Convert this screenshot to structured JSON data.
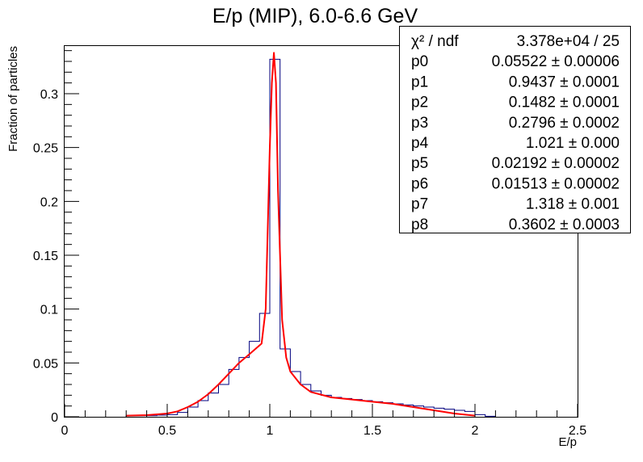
{
  "chart_data": {
    "type": "histogram",
    "title": "E/p (MIP), 6.0-6.6 GeV",
    "xlabel": "E/p",
    "ylabel": "Fraction of particles",
    "xlim": [
      0,
      2.5
    ],
    "ylim": [
      0,
      0.345
    ],
    "x_ticks": [
      0,
      0.5,
      1,
      1.5,
      2,
      2.5
    ],
    "x_tick_labels": [
      "0",
      "0.5",
      "1",
      "1.5",
      "2",
      "2.5"
    ],
    "y_ticks": [
      0,
      0.05,
      0.1,
      0.15,
      0.2,
      0.25,
      0.3
    ],
    "y_tick_labels": [
      "0",
      "0.05",
      "0.1",
      "0.15",
      "0.2",
      "0.25",
      "0.3"
    ],
    "grid": false,
    "histogram": {
      "color": "#00007f",
      "bin_width": 0.05,
      "bin_low_edges": [
        0.3,
        0.35,
        0.4,
        0.45,
        0.5,
        0.55,
        0.6,
        0.65,
        0.7,
        0.75,
        0.8,
        0.85,
        0.9,
        0.95,
        1.0,
        1.05,
        1.1,
        1.15,
        1.2,
        1.25,
        1.3,
        1.35,
        1.4,
        1.45,
        1.5,
        1.55,
        1.6,
        1.65,
        1.7,
        1.75,
        1.8,
        1.85,
        1.9,
        1.95,
        2.0,
        2.05
      ],
      "values": [
        0.001,
        0.001,
        0.001,
        0.0015,
        0.002,
        0.004,
        0.009,
        0.015,
        0.022,
        0.03,
        0.044,
        0.055,
        0.07,
        0.096,
        0.332,
        0.063,
        0.042,
        0.03,
        0.024,
        0.02,
        0.018,
        0.017,
        0.016,
        0.015,
        0.014,
        0.013,
        0.012,
        0.011,
        0.01,
        0.009,
        0.008,
        0.007,
        0.006,
        0.005,
        0.002,
        0.0005
      ]
    },
    "fit": {
      "color": "#ff0000",
      "x": [
        0.3,
        0.4,
        0.5,
        0.55,
        0.6,
        0.65,
        0.7,
        0.75,
        0.8,
        0.85,
        0.9,
        0.93,
        0.96,
        0.98,
        1.0,
        1.01,
        1.02,
        1.03,
        1.04,
        1.06,
        1.08,
        1.1,
        1.15,
        1.2,
        1.3,
        1.4,
        1.5,
        1.6,
        1.7,
        1.8,
        1.9,
        2.0
      ],
      "y": [
        0.001,
        0.0015,
        0.003,
        0.005,
        0.009,
        0.014,
        0.021,
        0.03,
        0.04,
        0.05,
        0.058,
        0.063,
        0.068,
        0.1,
        0.25,
        0.31,
        0.338,
        0.31,
        0.21,
        0.09,
        0.055,
        0.042,
        0.03,
        0.023,
        0.018,
        0.016,
        0.014,
        0.012,
        0.009,
        0.006,
        0.003,
        0.001
      ]
    },
    "stats_box": {
      "position": "top-right",
      "rows": [
        {
          "name": "χ² / ndf",
          "value": "3.378e+04 / 25"
        },
        {
          "name": "p0",
          "value": "0.05522 ± 0.00006"
        },
        {
          "name": "p1",
          "value": "0.9437 ± 0.0001"
        },
        {
          "name": "p2",
          "value": "0.1482 ± 0.0001"
        },
        {
          "name": "p3",
          "value": "0.2796 ± 0.0002"
        },
        {
          "name": "p4",
          "value": "1.021 ± 0.000"
        },
        {
          "name": "p5",
          "value": "0.02192 ± 0.00002"
        },
        {
          "name": "p6",
          "value": "0.01513 ± 0.00002"
        },
        {
          "name": "p7",
          "value": "1.318 ± 0.001"
        },
        {
          "name": "p8",
          "value": "0.3602 ± 0.0003"
        }
      ]
    }
  }
}
